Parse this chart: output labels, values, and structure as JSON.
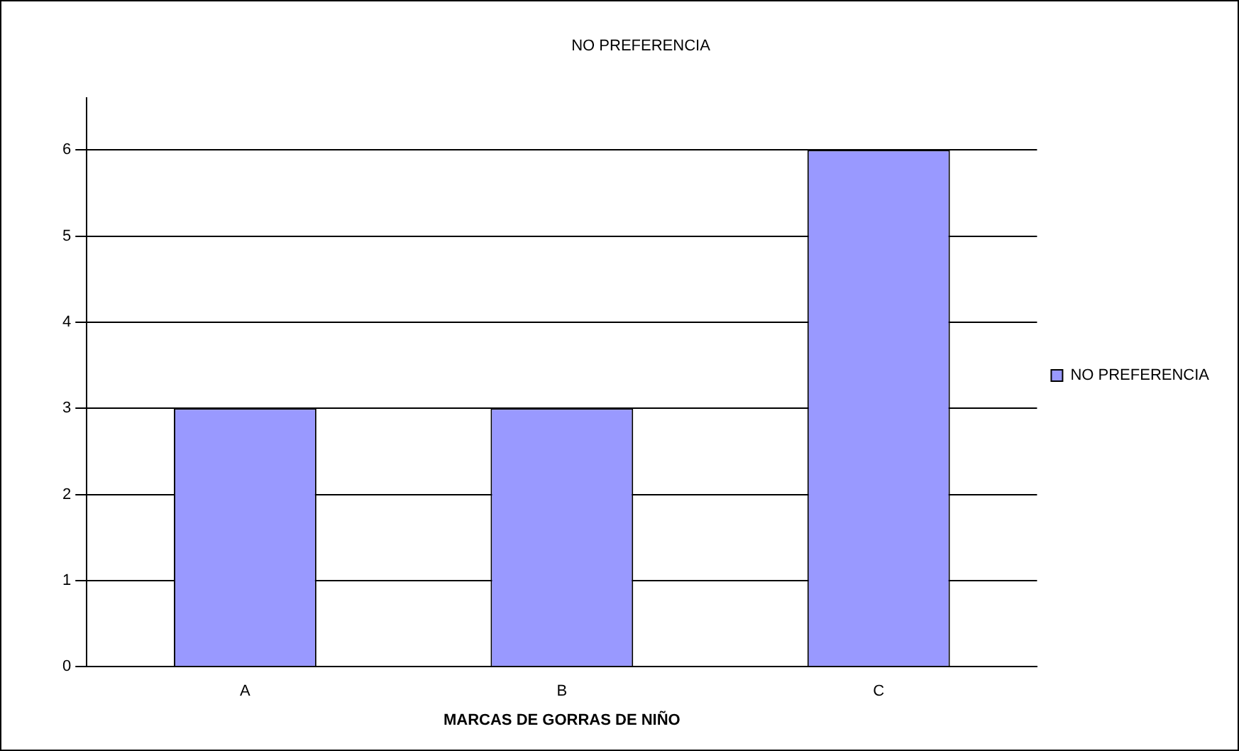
{
  "chart_data": {
    "type": "bar",
    "title": "NO PREFERENCIA",
    "xlabel": "MARCAS DE GORRAS DE NIÑO",
    "categories": [
      "A",
      "B",
      "C"
    ],
    "series": [
      {
        "name": "NO PREFERENCIA",
        "color": "#9999ff",
        "values": [
          3,
          3,
          6
        ]
      }
    ],
    "ylim": [
      0,
      6.6
    ],
    "yticks": [
      0,
      1,
      2,
      3,
      4,
      5,
      6
    ],
    "grid": "y",
    "legend": "right"
  }
}
